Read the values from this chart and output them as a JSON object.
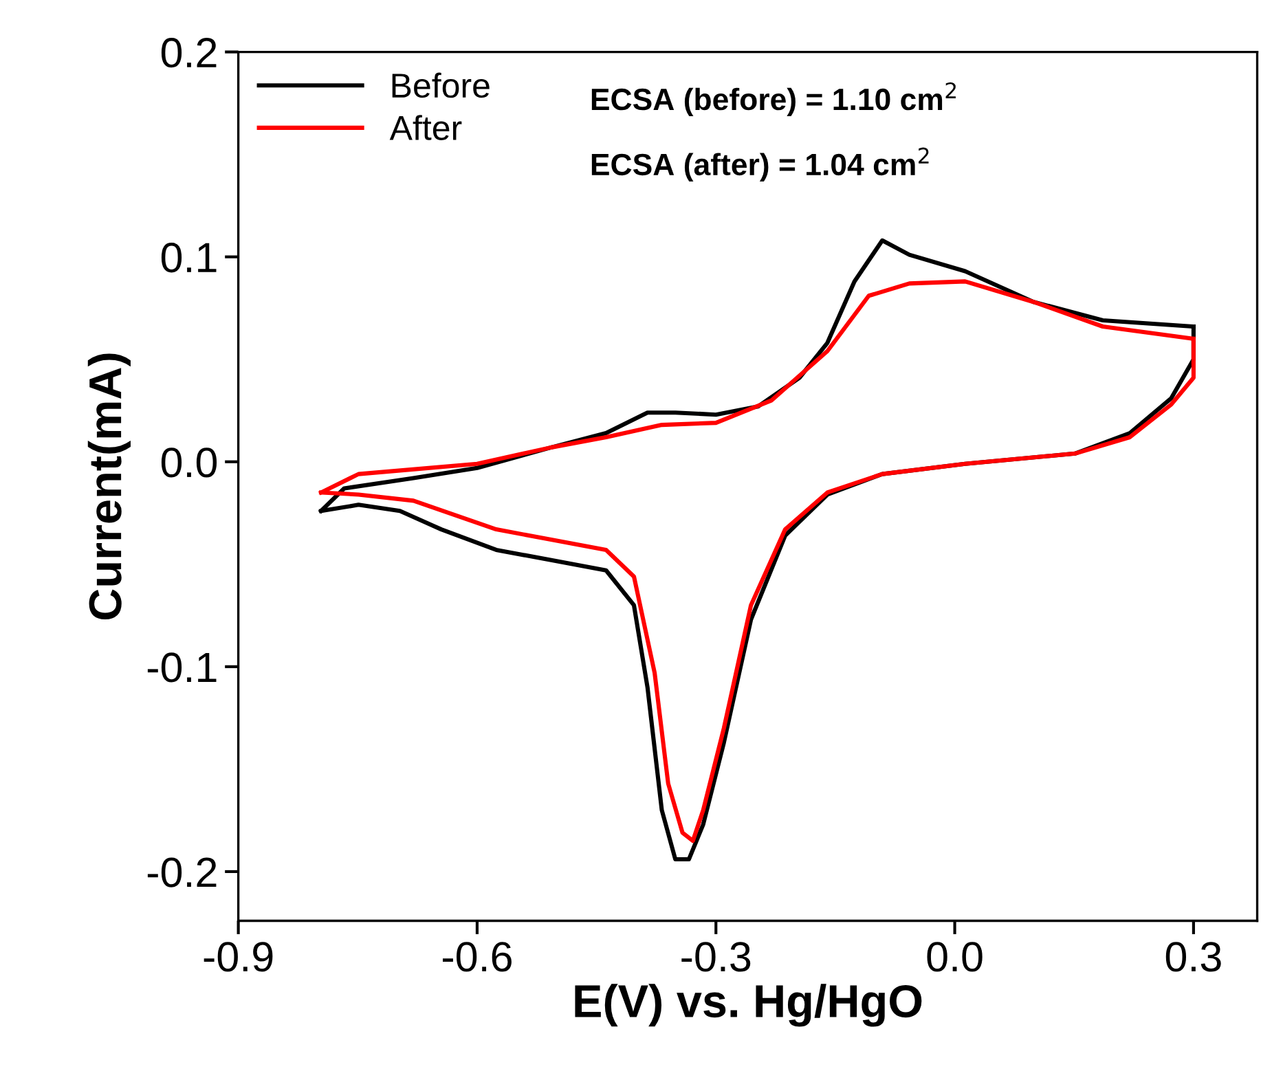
{
  "chart_data": {
    "type": "line",
    "xlabel": "E(V) vs. Hg/HgO",
    "ylabel": "Current(mA)",
    "xlim": [
      -0.9,
      0.38
    ],
    "ylim": [
      -0.224,
      0.2
    ],
    "xticks": [
      {
        "value": -0.9,
        "label": "-0.9"
      },
      {
        "value": -0.6,
        "label": "-0.6"
      },
      {
        "value": -0.3,
        "label": "-0.3"
      },
      {
        "value": 0.0,
        "label": "0.0"
      },
      {
        "value": 0.3,
        "label": "0.3"
      }
    ],
    "yticks": [
      {
        "value": -0.2,
        "label": "-0.2"
      },
      {
        "value": -0.1,
        "label": "-0.1"
      },
      {
        "value": 0.0,
        "label": "0.0"
      },
      {
        "value": 0.1,
        "label": "0.1"
      },
      {
        "value": 0.2,
        "label": "0.2"
      }
    ],
    "grid": false,
    "legend": "top left",
    "marker": "none",
    "line_style": "solid",
    "annotations": [
      "ECSA (before) = 1.10 cm$^{2}$",
      "ECSA (after) = 1.04 cm$^{2}$"
    ],
    "series": [
      {
        "name": "Before",
        "color": "#000000",
        "x": [
          -0.796,
          -0.767,
          -0.68,
          -0.6,
          -0.507,
          -0.438,
          -0.386,
          -0.351,
          -0.3,
          -0.247,
          -0.195,
          -0.16,
          -0.126,
          -0.091,
          -0.057,
          0.013,
          0.099,
          0.186,
          0.3
        ],
        "values": [
          -0.024,
          -0.013,
          -0.008,
          -0.003,
          0.007,
          0.014,
          0.024,
          0.024,
          0.023,
          0.027,
          0.041,
          0.058,
          0.088,
          0.108,
          0.101,
          0.093,
          0.078,
          0.069,
          0.066
        ]
      },
      {
        "color": "#000000",
        "x": [
          -0.796,
          -0.749,
          -0.697,
          -0.645,
          -0.576,
          -0.507,
          -0.438,
          -0.403,
          -0.386,
          -0.368,
          -0.351,
          -0.334,
          -0.316,
          -0.29,
          -0.256,
          -0.213,
          -0.16,
          -0.091,
          0.013,
          0.151,
          0.22,
          0.272,
          0.3,
          0.3
        ],
        "values": [
          -0.024,
          -0.021,
          -0.024,
          -0.033,
          -0.043,
          -0.048,
          -0.053,
          -0.07,
          -0.11,
          -0.17,
          -0.194,
          -0.194,
          -0.177,
          -0.137,
          -0.077,
          -0.036,
          -0.016,
          -0.006,
          -0.001,
          0.004,
          0.014,
          0.031,
          0.05,
          0.066
        ]
      },
      {
        "name": "After",
        "color": "#ff0000",
        "x": [
          -0.796,
          -0.749,
          -0.6,
          -0.507,
          -0.438,
          -0.368,
          -0.3,
          -0.23,
          -0.16,
          -0.108,
          -0.057,
          0.013,
          0.099,
          0.186,
          0.3
        ],
        "values": [
          -0.015,
          -0.006,
          -0.001,
          0.007,
          0.012,
          0.018,
          0.019,
          0.03,
          0.054,
          0.081,
          0.087,
          0.088,
          0.078,
          0.066,
          0.06
        ]
      },
      {
        "color": "#ff0000",
        "x": [
          -0.796,
          -0.749,
          -0.68,
          -0.576,
          -0.507,
          -0.438,
          -0.403,
          -0.377,
          -0.36,
          -0.342,
          -0.329,
          -0.316,
          -0.29,
          -0.256,
          -0.213,
          -0.16,
          -0.091,
          0.013,
          0.151,
          0.22,
          0.272,
          0.3,
          0.3
        ],
        "values": [
          -0.015,
          -0.016,
          -0.019,
          -0.033,
          -0.038,
          -0.043,
          -0.056,
          -0.103,
          -0.157,
          -0.181,
          -0.185,
          -0.17,
          -0.13,
          -0.07,
          -0.033,
          -0.015,
          -0.006,
          -0.001,
          0.004,
          0.012,
          0.028,
          0.041,
          0.06
        ]
      }
    ]
  }
}
